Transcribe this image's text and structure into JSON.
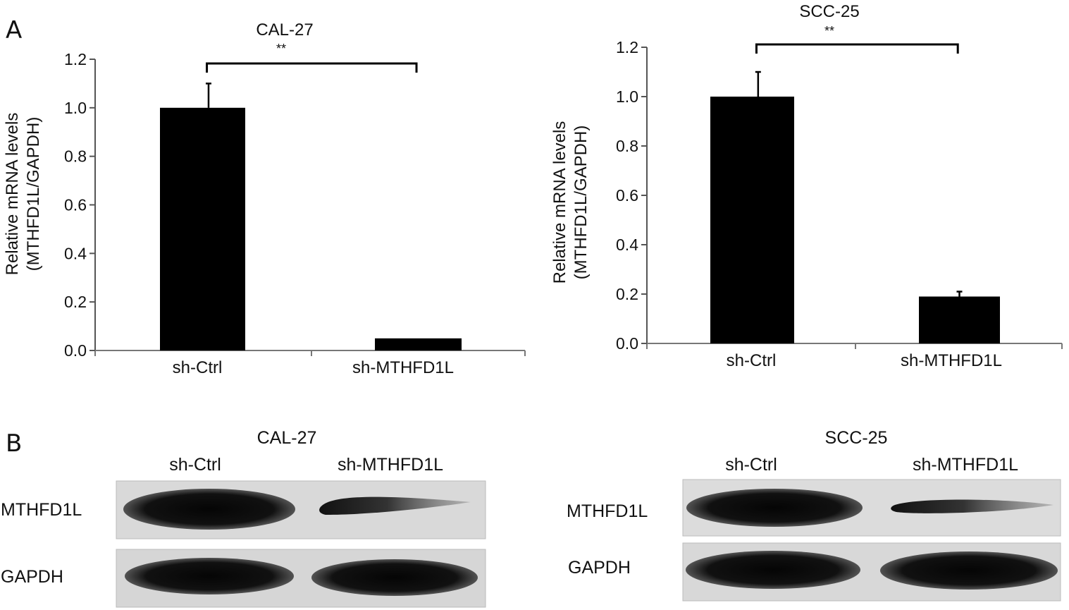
{
  "figure": {
    "panel_a_label": "A",
    "panel_b_label": "B"
  },
  "chart_data": [
    {
      "type": "bar",
      "title": "CAL-27",
      "ylabel_line1": "Relative mRNA levels",
      "ylabel_line2": "(MTHFD1L/GAPDH)",
      "categories": [
        "sh-Ctrl",
        "sh-MTHFD1L"
      ],
      "values": [
        1.0,
        0.05
      ],
      "error": [
        0.1,
        0.005
      ],
      "yticks": [
        "0.0",
        "0.2",
        "0.4",
        "0.6",
        "0.8",
        "1.0",
        "1.2"
      ],
      "ylim": [
        0,
        1.2
      ],
      "significance": "**",
      "bar_color": "#000000"
    },
    {
      "type": "bar",
      "title": "SCC-25",
      "ylabel_line1": "Relative mRNA levels",
      "ylabel_line2": "(MTHFD1L/GAPDH)",
      "categories": [
        "sh-Ctrl",
        "sh-MTHFD1L"
      ],
      "values": [
        1.0,
        0.19
      ],
      "error": [
        0.1,
        0.02
      ],
      "yticks": [
        "0.0",
        "0.2",
        "0.4",
        "0.6",
        "0.8",
        "1.0",
        "1.2"
      ],
      "ylim": [
        0,
        1.2
      ],
      "significance": "**",
      "bar_color": "#000000"
    }
  ],
  "western_blots": [
    {
      "title": "CAL-27",
      "columns": [
        "sh-Ctrl",
        "sh-MTHFD1L"
      ],
      "rows": [
        "MTHFD1L",
        "GAPDH"
      ],
      "band_intensity": {
        "MTHFD1L": [
          1.0,
          0.3
        ],
        "GAPDH": [
          1.0,
          1.0
        ]
      }
    },
    {
      "title": "SCC-25",
      "columns": [
        "sh-Ctrl",
        "sh-MTHFD1L"
      ],
      "rows": [
        "MTHFD1L",
        "GAPDH"
      ],
      "band_intensity": {
        "MTHFD1L": [
          1.0,
          0.3
        ],
        "GAPDH": [
          1.0,
          1.0
        ]
      }
    }
  ]
}
